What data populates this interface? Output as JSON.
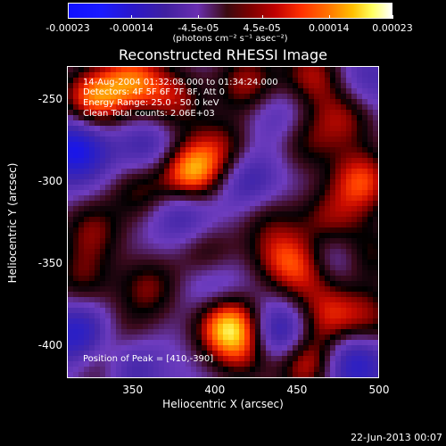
{
  "chart_data": {
    "type": "heatmap",
    "title": "Reconstructed RHESSI Image",
    "xlabel": "Heliocentric X (arcsec)",
    "ylabel": "Heliocentric Y (arcsec)",
    "xlim": [
      310,
      500
    ],
    "ylim": [
      -420,
      -230
    ],
    "x_ticks": [
      "350",
      "400",
      "450",
      "500"
    ],
    "x_tick_values": [
      350,
      400,
      450,
      500
    ],
    "y_ticks": [
      "-250",
      "-300",
      "-350",
      "-400"
    ],
    "y_tick_values": [
      -250,
      -300,
      -350,
      -400
    ],
    "colorbar": {
      "ticks": [
        "-0.00023",
        "-0.00014",
        "-4.5e-05",
        "4.5e-05",
        "0.00014",
        "0.00023"
      ],
      "tick_values": [
        -0.00023,
        -0.00014,
        -4.5e-05,
        4.5e-05,
        0.00014,
        0.00023
      ],
      "unit_label": "(photons cm⁻² s⁻¹ asec⁻²)"
    },
    "annotations": {
      "time": "14-Aug-2004 01:32:08.000 to 01:34:24.000",
      "detectors": "Detectors: 4F 5F 6F 7F 8F, Att 0",
      "energy": "Energy Range: 25.0 - 50.0 keV",
      "method": "Clean    Total counts: 2.06E+03",
      "peak": "Position of Peak = [410,-390]"
    },
    "sources": [
      {
        "x": 408,
        "y": -388,
        "amp": 1.0
      },
      {
        "x": 385,
        "y": -295,
        "amp": 0.95
      },
      {
        "x": 325,
        "y": -250,
        "amp": 0.8
      },
      {
        "x": 350,
        "y": -238,
        "amp": 0.7
      },
      {
        "x": 420,
        "y": -240,
        "amp": 0.55
      },
      {
        "x": 375,
        "y": -250,
        "amp": 0.5
      },
      {
        "x": 460,
        "y": -235,
        "amp": 0.55
      },
      {
        "x": 480,
        "y": -260,
        "amp": 0.5
      },
      {
        "x": 455,
        "y": -275,
        "amp": 0.4
      },
      {
        "x": 490,
        "y": -300,
        "amp": 0.7
      },
      {
        "x": 470,
        "y": -325,
        "amp": 0.5
      },
      {
        "x": 405,
        "y": -280,
        "amp": 0.45
      },
      {
        "x": 355,
        "y": -305,
        "amp": 0.45
      },
      {
        "x": 440,
        "y": -345,
        "amp": 0.45
      },
      {
        "x": 455,
        "y": -355,
        "amp": 0.55
      },
      {
        "x": 360,
        "y": -365,
        "amp": 0.45
      },
      {
        "x": 395,
        "y": -345,
        "amp": 0.4
      },
      {
        "x": 430,
        "y": -320,
        "amp": 0.3
      },
      {
        "x": 470,
        "y": -382,
        "amp": 0.55
      },
      {
        "x": 495,
        "y": -385,
        "amp": 0.45
      },
      {
        "x": 455,
        "y": -410,
        "amp": 0.75
      },
      {
        "x": 330,
        "y": -410,
        "amp": 0.55
      },
      {
        "x": 325,
        "y": -330,
        "amp": 0.45
      },
      {
        "x": 318,
        "y": -360,
        "amp": 0.4
      },
      {
        "x": 345,
        "y": -395,
        "amp": 0.35
      },
      {
        "x": 495,
        "y": -345,
        "amp": 0.4
      },
      {
        "x": 420,
        "y": -405,
        "amp": 0.45
      },
      {
        "x": 315,
        "y": -280,
        "amp": -0.75
      },
      {
        "x": 318,
        "y": -395,
        "amp": -0.7
      },
      {
        "x": 345,
        "y": -410,
        "amp": -0.55
      },
      {
        "x": 440,
        "y": -395,
        "amp": -0.7
      },
      {
        "x": 485,
        "y": -410,
        "amp": -0.6
      },
      {
        "x": 380,
        "y": -318,
        "amp": -0.45
      },
      {
        "x": 420,
        "y": -300,
        "amp": -0.45
      },
      {
        "x": 470,
        "y": -345,
        "amp": -0.4
      },
      {
        "x": 360,
        "y": -280,
        "amp": -0.4
      },
      {
        "x": 400,
        "y": -365,
        "amp": -0.35
      },
      {
        "x": 440,
        "y": -260,
        "amp": -0.3
      },
      {
        "x": 490,
        "y": -240,
        "amp": -0.3
      }
    ]
  },
  "footer": {
    "date": "22-Jun-2013 00:07"
  }
}
